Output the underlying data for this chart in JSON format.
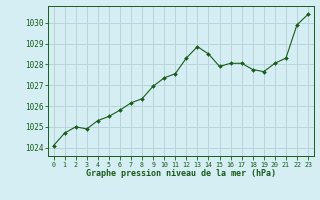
{
  "x": [
    0,
    1,
    2,
    3,
    4,
    5,
    6,
    7,
    8,
    9,
    10,
    11,
    12,
    13,
    14,
    15,
    16,
    17,
    18,
    19,
    20,
    21,
    22,
    23
  ],
  "y": [
    1024.1,
    1024.7,
    1025.0,
    1024.9,
    1025.3,
    1025.5,
    1025.8,
    1026.15,
    1026.35,
    1026.95,
    1027.35,
    1027.55,
    1028.3,
    1028.85,
    1028.5,
    1027.9,
    1028.05,
    1028.05,
    1027.75,
    1027.65,
    1028.05,
    1028.3,
    1029.9,
    1030.4
  ],
  "line_color": "#1a5c1a",
  "marker_color": "#1a5c1a",
  "bg_color": "#d4eef4",
  "grid_color": "#b8d4d8",
  "xlabel": "Graphe pression niveau de la mer (hPa)",
  "ylabel_ticks": [
    1024,
    1025,
    1026,
    1027,
    1028,
    1029,
    1030
  ],
  "ylim": [
    1023.6,
    1030.8
  ],
  "xlim": [
    -0.5,
    23.5
  ],
  "xticks": [
    0,
    1,
    2,
    3,
    4,
    5,
    6,
    7,
    8,
    9,
    10,
    11,
    12,
    13,
    14,
    15,
    16,
    17,
    18,
    19,
    20,
    21,
    22,
    23
  ]
}
